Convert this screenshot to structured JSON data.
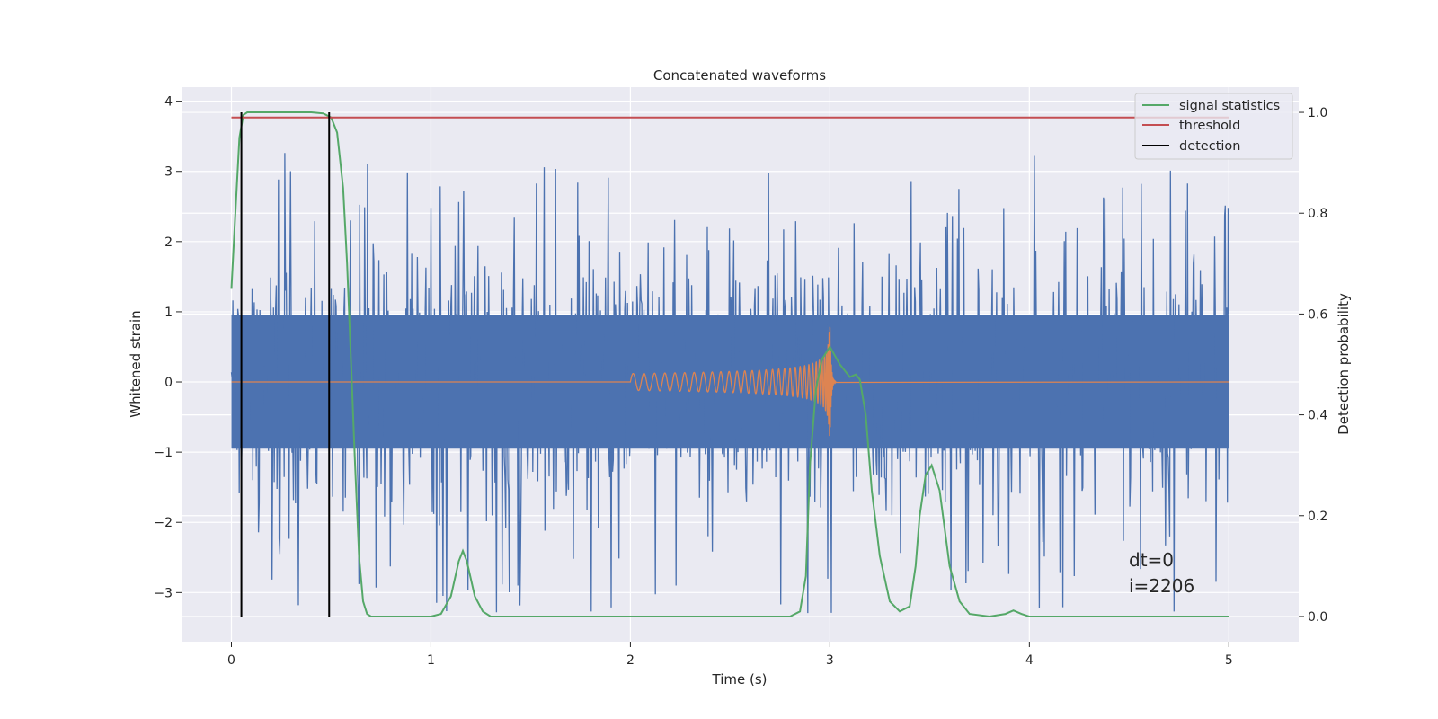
{
  "chart_data": {
    "type": "line",
    "title": "Concatenated waveforms",
    "xlabel": "Time (s)",
    "ylabel": "Whitened strain",
    "y2label": "Detection probability",
    "xlim": [
      -0.25,
      5.35
    ],
    "ylim": [
      -3.7,
      4.2
    ],
    "y2lim": [
      -0.05,
      1.05
    ],
    "xticks": [
      0,
      1,
      2,
      3,
      4,
      5
    ],
    "yticks": [
      -3,
      -2,
      -1,
      0,
      1,
      2,
      3,
      4
    ],
    "y2ticks": [
      0.0,
      0.2,
      0.4,
      0.6,
      0.8,
      1.0
    ],
    "xtick_labels": [
      "0",
      "1",
      "2",
      "3",
      "4",
      "5"
    ],
    "ytick_labels": [
      "−3",
      "−2",
      "−1",
      "0",
      "1",
      "2",
      "3",
      "4"
    ],
    "y2tick_labels": [
      "0.0",
      "0.2",
      "0.4",
      "0.6",
      "0.8",
      "1.0"
    ],
    "grid": true,
    "legend": {
      "position": "top-right",
      "entries": [
        {
          "label": "signal statistics",
          "color": "#55a868"
        },
        {
          "label": "threshold",
          "color": "#c44e52"
        },
        {
          "label": "detection",
          "color": "#000000"
        }
      ]
    },
    "series": [
      {
        "name": "signal statistics",
        "axis": "right",
        "color": "#55a868",
        "x": [
          0.0,
          0.02,
          0.04,
          0.06,
          0.08,
          0.1,
          0.2,
          0.3,
          0.4,
          0.46,
          0.5,
          0.53,
          0.56,
          0.58,
          0.6,
          0.62,
          0.64,
          0.66,
          0.68,
          0.7,
          0.75,
          1.0,
          1.05,
          1.1,
          1.14,
          1.16,
          1.18,
          1.22,
          1.26,
          1.3,
          1.5,
          2.0,
          2.5,
          2.8,
          2.85,
          2.88,
          2.9,
          2.93,
          2.96,
          3.0,
          3.05,
          3.1,
          3.13,
          3.15,
          3.18,
          3.21,
          3.25,
          3.3,
          3.35,
          3.4,
          3.43,
          3.45,
          3.48,
          3.51,
          3.55,
          3.6,
          3.65,
          3.7,
          3.8,
          3.88,
          3.92,
          3.96,
          4.0,
          4.5,
          5.0
        ],
        "values": [
          0.65,
          0.8,
          0.95,
          0.995,
          1.0,
          1.0,
          1.0,
          1.0,
          1.0,
          0.998,
          0.99,
          0.96,
          0.85,
          0.7,
          0.5,
          0.3,
          0.12,
          0.03,
          0.005,
          0.0,
          0.0,
          0.0,
          0.005,
          0.04,
          0.11,
          0.13,
          0.11,
          0.04,
          0.01,
          0.0,
          0.0,
          0.0,
          0.0,
          0.0,
          0.01,
          0.08,
          0.3,
          0.45,
          0.51,
          0.535,
          0.5,
          0.475,
          0.48,
          0.47,
          0.4,
          0.25,
          0.12,
          0.03,
          0.01,
          0.02,
          0.1,
          0.2,
          0.28,
          0.3,
          0.25,
          0.1,
          0.03,
          0.005,
          0.0,
          0.005,
          0.012,
          0.005,
          0.0,
          0.0,
          0.0
        ]
      },
      {
        "name": "threshold",
        "axis": "right",
        "color": "#c44e52",
        "x": [
          0.0,
          5.0
        ],
        "values": [
          0.99,
          0.99
        ]
      }
    ],
    "detection_lines": {
      "x": [
        0.05,
        0.49
      ],
      "y2_range": [
        0.0,
        1.0
      ],
      "color": "#000000"
    },
    "strain_noise": {
      "color": "#4c72b0",
      "x_range": [
        0.0,
        5.0
      ],
      "approx_range": [
        -3.3,
        3.8
      ]
    },
    "injected_signal": {
      "color": "#dd8452",
      "start": 2.0,
      "merger": 3.0,
      "end": 5.0
    },
    "annotation": {
      "line1": "dt=0",
      "line2": "i=2206",
      "x": 4.5,
      "y": 0.12
    }
  }
}
